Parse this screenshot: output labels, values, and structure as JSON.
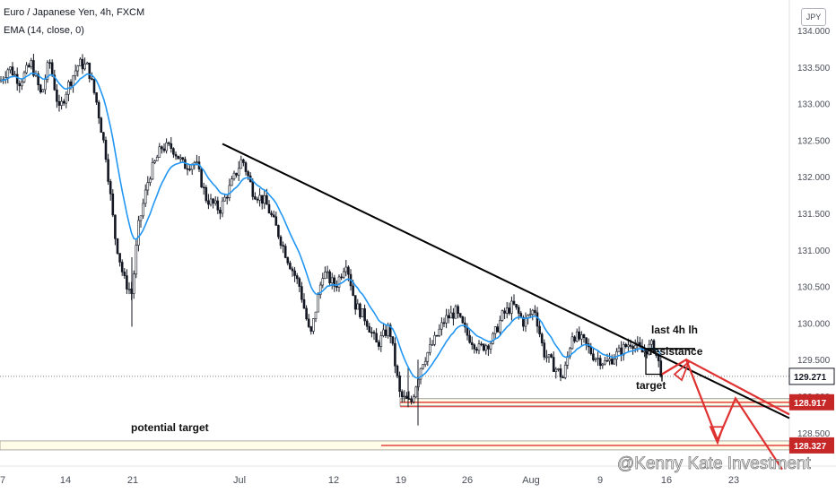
{
  "header": {
    "title": "Euro / Japanese Yen, 4h, FXCM",
    "indicator": "EMA (14, close, 0)"
  },
  "currency_badge": "JPY",
  "watermark": "@Kenny Kate Investment",
  "annotations": {
    "last_lh": "last 4h lh",
    "resistance": "resistance",
    "target": "target",
    "potential_target": "potential target"
  },
  "colors": {
    "candle": "#131722",
    "ema": "#2196f3",
    "trendline": "#000000",
    "level": "#e03131",
    "zone_fill": "#fffde7",
    "price_label": "#c62828",
    "current_label": "#131722"
  },
  "chart_data": {
    "type": "candlestick",
    "symbol": "EUR/JPY",
    "timeframe": "4h",
    "y_axis": {
      "min": 128.0,
      "max": 134.0,
      "ticks": [
        "134.000",
        "133.500",
        "133.000",
        "132.500",
        "132.000",
        "131.500",
        "131.000",
        "130.500",
        "130.000",
        "129.500",
        "129.000",
        "128.500"
      ]
    },
    "x_ticks": [
      "7",
      "14",
      "21",
      "Jul",
      "12",
      "19",
      "26",
      "Aug",
      "9",
      "16",
      "23"
    ],
    "price_path": [
      {
        "t": 0,
        "p": 133.3
      },
      {
        "t": 10,
        "p": 133.5
      },
      {
        "t": 22,
        "p": 133.3
      },
      {
        "t": 35,
        "p": 133.55
      },
      {
        "t": 46,
        "p": 133.1
      },
      {
        "t": 55,
        "p": 133.6
      },
      {
        "t": 66,
        "p": 132.9
      },
      {
        "t": 76,
        "p": 133.25
      },
      {
        "t": 88,
        "p": 133.55
      },
      {
        "t": 98,
        "p": 133.5
      },
      {
        "t": 108,
        "p": 133.0
      },
      {
        "t": 118,
        "p": 132.3
      },
      {
        "t": 128,
        "p": 131.2
      },
      {
        "t": 138,
        "p": 130.6
      },
      {
        "t": 147,
        "p": 130.4
      },
      {
        "t": 154,
        "p": 131.3
      },
      {
        "t": 166,
        "p": 132.0
      },
      {
        "t": 180,
        "p": 132.4
      },
      {
        "t": 192,
        "p": 132.4
      },
      {
        "t": 205,
        "p": 132.15
      },
      {
        "t": 218,
        "p": 132.2
      },
      {
        "t": 230,
        "p": 131.7
      },
      {
        "t": 245,
        "p": 131.55
      },
      {
        "t": 258,
        "p": 131.9
      },
      {
        "t": 270,
        "p": 132.25
      },
      {
        "t": 282,
        "p": 131.8
      },
      {
        "t": 296,
        "p": 131.65
      },
      {
        "t": 308,
        "p": 131.3
      },
      {
        "t": 320,
        "p": 130.9
      },
      {
        "t": 334,
        "p": 130.5
      },
      {
        "t": 346,
        "p": 129.8
      },
      {
        "t": 360,
        "p": 130.7
      },
      {
        "t": 374,
        "p": 130.5
      },
      {
        "t": 386,
        "p": 130.85
      },
      {
        "t": 396,
        "p": 130.25
      },
      {
        "t": 408,
        "p": 130.05
      },
      {
        "t": 420,
        "p": 129.7
      },
      {
        "t": 434,
        "p": 129.95
      },
      {
        "t": 446,
        "p": 129.0
      },
      {
        "t": 458,
        "p": 128.9
      },
      {
        "t": 470,
        "p": 129.45
      },
      {
        "t": 484,
        "p": 129.75
      },
      {
        "t": 496,
        "p": 130.05
      },
      {
        "t": 508,
        "p": 130.15
      },
      {
        "t": 520,
        "p": 129.85
      },
      {
        "t": 534,
        "p": 129.65
      },
      {
        "t": 548,
        "p": 129.75
      },
      {
        "t": 560,
        "p": 130.1
      },
      {
        "t": 572,
        "p": 130.25
      },
      {
        "t": 584,
        "p": 130.0
      },
      {
        "t": 596,
        "p": 130.2
      },
      {
        "t": 606,
        "p": 129.6
      },
      {
        "t": 618,
        "p": 129.4
      },
      {
        "t": 628,
        "p": 129.25
      },
      {
        "t": 638,
        "p": 129.85
      },
      {
        "t": 650,
        "p": 129.75
      },
      {
        "t": 662,
        "p": 129.55
      },
      {
        "t": 676,
        "p": 129.45
      },
      {
        "t": 690,
        "p": 129.6
      },
      {
        "t": 704,
        "p": 129.75
      },
      {
        "t": 716,
        "p": 129.6
      },
      {
        "t": 728,
        "p": 129.7
      },
      {
        "t": 738,
        "p": 129.3
      }
    ],
    "trendline": {
      "from": {
        "t": 248,
        "p": 132.45
      },
      "to": {
        "t": 880,
        "p": 128.7
      }
    },
    "levels": [
      {
        "price": 128.917,
        "label": "128.917"
      },
      {
        "price": 128.327,
        "label": "128.327"
      }
    ],
    "current_price": {
      "price": 129.271,
      "label": "129.271"
    },
    "resistance_price": 129.65,
    "target_price": 129.3,
    "projection": [
      {
        "t": 738,
        "p": 129.3
      },
      {
        "t": 765,
        "p": 129.5
      },
      {
        "t": 800,
        "p": 128.4
      },
      {
        "t": 820,
        "p": 128.97
      },
      {
        "t": 872,
        "p": 128.0
      }
    ],
    "projection_alt": [
      {
        "t": 765,
        "p": 129.5
      },
      {
        "t": 880,
        "p": 128.75
      }
    ]
  }
}
